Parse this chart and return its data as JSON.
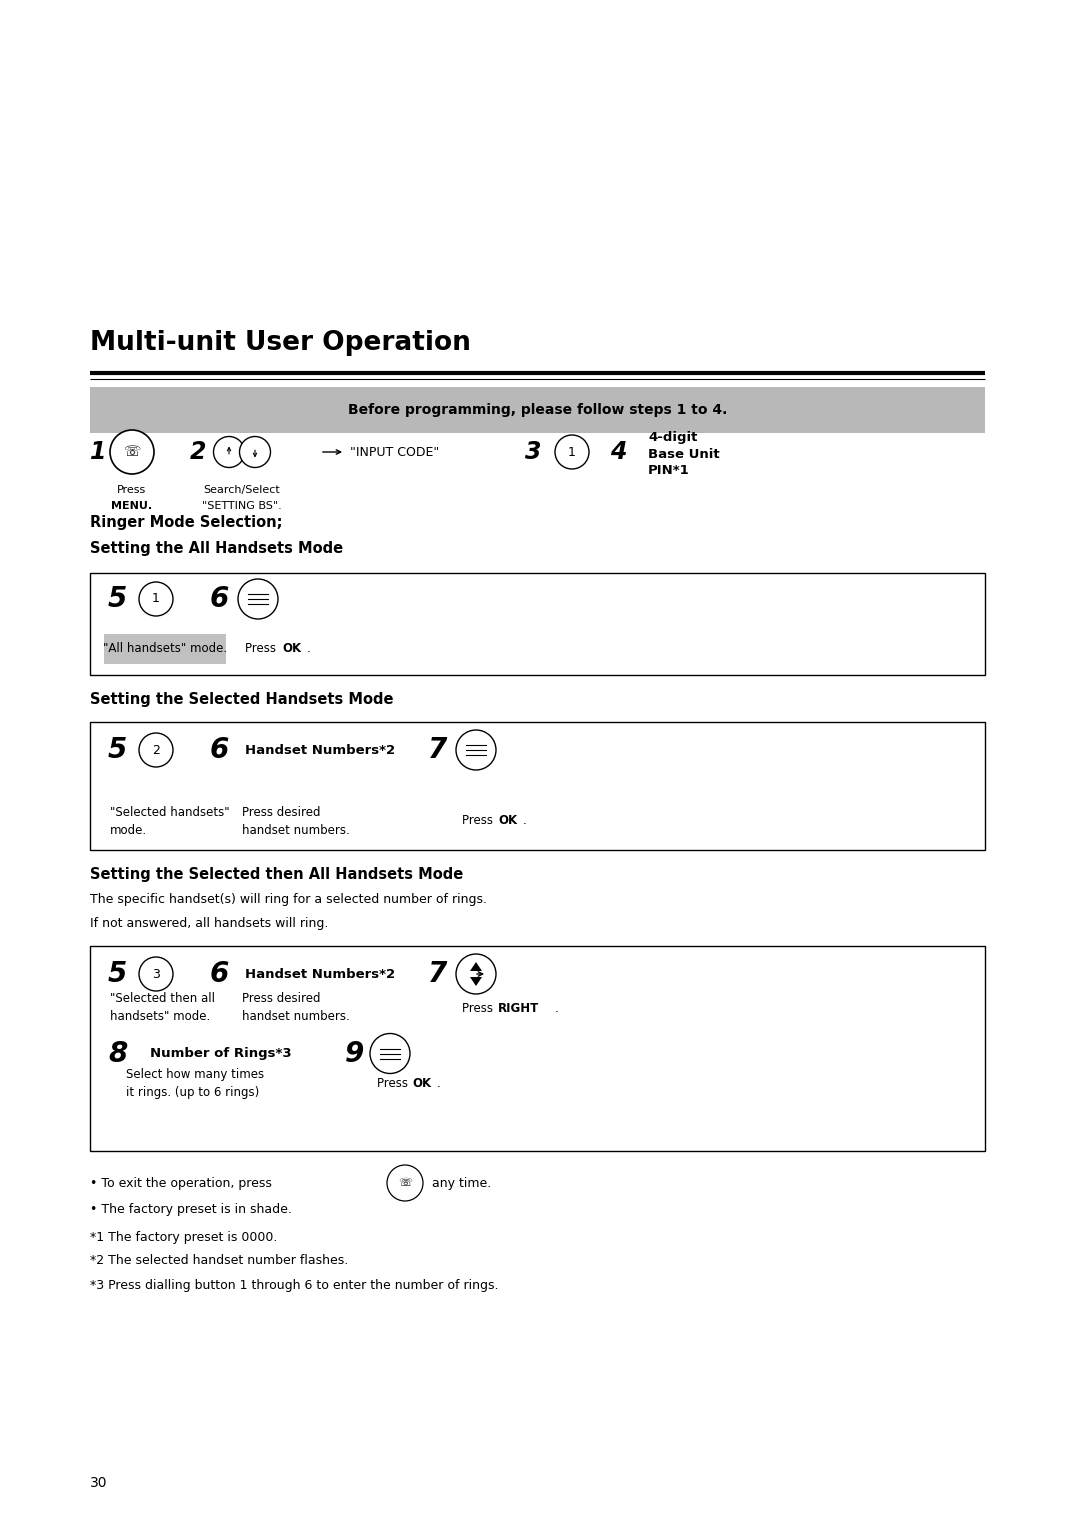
{
  "title": "Multi-unit User Operation",
  "bg_color": "#ffffff",
  "page_number": "30",
  "before_programming_text": "Before programming, please follow steps 1 to 4.",
  "before_bg": "#b8b8b8",
  "section1_heading1": "Ringer Mode Selection;",
  "section1_heading2": "Setting the All Handsets Mode",
  "section2_heading": "Setting the Selected Handsets Mode",
  "section3_heading": "Setting the Selected then All Handsets Mode",
  "section3_sub1": "The specific handset(s) will ring for a selected number of rings.",
  "section3_sub2": "If not answered, all handsets will ring.",
  "note1": "*1 The factory preset is 0000.",
  "note2": "*2 The selected handset number flashes.",
  "note3": "*3 Press dialling button 1 through 6 to enter the number of rings."
}
